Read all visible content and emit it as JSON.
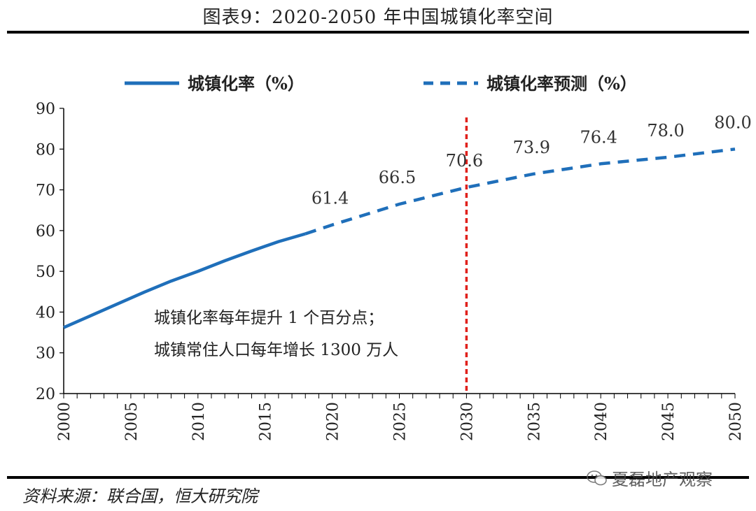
{
  "header": {
    "title": "图表9：2020-2050 年中国城镇化率空间"
  },
  "footer": {
    "source": "资料来源：联合国，恒大研究院",
    "watermark": "夏磊地产观察"
  },
  "colors": {
    "series": "#1f6fba",
    "marker": "#e0201b",
    "axis": "#000000"
  },
  "chart_data": {
    "type": "line",
    "title": "图表9：2020-2050 年中国城镇化率空间",
    "xlabel": "",
    "ylabel": "",
    "xlim": [
      2000,
      2050
    ],
    "ylim": [
      20,
      90
    ],
    "yticks": [
      20,
      30,
      40,
      50,
      60,
      70,
      80,
      90
    ],
    "xticks": [
      2000,
      2005,
      2010,
      2015,
      2020,
      2025,
      2030,
      2035,
      2040,
      2045,
      2050
    ],
    "series": [
      {
        "name": "城镇化率（%）",
        "style": "solid",
        "x": [
          2000,
          2002,
          2004,
          2006,
          2008,
          2010,
          2012,
          2014,
          2016,
          2018
        ],
        "y": [
          36.2,
          39.1,
          42.0,
          44.9,
          47.6,
          50.0,
          52.6,
          55.0,
          57.3,
          59.2
        ]
      },
      {
        "name": "城镇化率预测（%）",
        "style": "dashed",
        "x": [
          2018,
          2020,
          2025,
          2030,
          2035,
          2040,
          2045,
          2050
        ],
        "y": [
          59.2,
          61.4,
          66.5,
          70.6,
          73.9,
          76.4,
          78.0,
          80.0
        ]
      }
    ],
    "data_labels": [
      {
        "x": 2020,
        "y": 61.4,
        "text": "61.4"
      },
      {
        "x": 2025,
        "y": 66.5,
        "text": "66.5"
      },
      {
        "x": 2030,
        "y": 70.6,
        "text": "70.6"
      },
      {
        "x": 2035,
        "y": 73.9,
        "text": "73.9"
      },
      {
        "x": 2040,
        "y": 76.4,
        "text": "76.4"
      },
      {
        "x": 2045,
        "y": 78.0,
        "text": "78.0"
      },
      {
        "x": 2050,
        "y": 80.0,
        "text": "80.0"
      }
    ],
    "reference_line": {
      "x": 2030,
      "style": "dashed"
    },
    "annotations": [
      "城镇化率每年提升 1 个百分点；",
      "城镇常住人口每年增长 1300 万人"
    ],
    "legend": {
      "position": "top"
    }
  }
}
